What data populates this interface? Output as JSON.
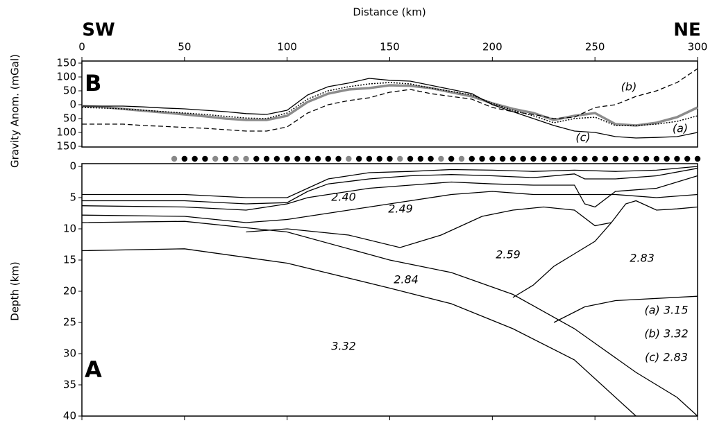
{
  "chart_data": [
    {
      "type": "line",
      "panel": "B",
      "x_label": "Distance (km)",
      "y_label": "Gravity Anom. (mGal)",
      "left_label": "SW",
      "right_label": "NE",
      "xlim": [
        0,
        300
      ],
      "xticks": [
        0,
        50,
        100,
        150,
        200,
        250,
        300
      ],
      "ylim": [
        -150,
        150
      ],
      "yticks": [
        150,
        100,
        50,
        0,
        {
          "value": -50,
          "label": "50"
        },
        {
          "value": -100,
          "label": "100"
        },
        {
          "value": -150,
          "label": "150"
        }
      ],
      "x": [
        0,
        10,
        20,
        30,
        40,
        50,
        60,
        70,
        80,
        90,
        100,
        110,
        120,
        130,
        140,
        150,
        160,
        170,
        180,
        190,
        200,
        210,
        220,
        230,
        240,
        250,
        260,
        270,
        280,
        290,
        300
      ],
      "series": [
        {
          "color": "#8c8c8c",
          "style": "thick",
          "values": [
            -5,
            -8,
            -15,
            -22,
            -28,
            -35,
            -42,
            -50,
            -55,
            -55,
            -40,
            10,
            40,
            55,
            60,
            70,
            68,
            60,
            45,
            30,
            5,
            -15,
            -30,
            -55,
            -40,
            -30,
            -70,
            -75,
            -65,
            -45,
            -10
          ]
        },
        {
          "name": "(a)",
          "color": "#000000",
          "style": "dotted",
          "values": [
            -10,
            -12,
            -15,
            -20,
            -25,
            -30,
            -35,
            -42,
            -48,
            -50,
            -30,
            20,
            50,
            65,
            75,
            80,
            75,
            60,
            48,
            35,
            5,
            -20,
            -40,
            -65,
            -50,
            -45,
            -75,
            -75,
            -70,
            -60,
            -40
          ]
        },
        {
          "name": "(b)",
          "color": "#000000",
          "style": "dashed",
          "values": [
            -70,
            -70,
            -70,
            -75,
            -78,
            -82,
            -85,
            -90,
            -95,
            -95,
            -80,
            -30,
            0,
            15,
            25,
            45,
            55,
            40,
            30,
            20,
            -10,
            -25,
            -35,
            -50,
            -45,
            -10,
            0,
            30,
            50,
            80,
            130
          ]
        },
        {
          "name": "(c)",
          "color": "#000000",
          "style": "solid",
          "values": [
            -5,
            -5,
            -5,
            -8,
            -12,
            -15,
            -20,
            -25,
            -32,
            -35,
            -20,
            35,
            65,
            78,
            95,
            88,
            85,
            70,
            55,
            40,
            0,
            -25,
            -50,
            -75,
            -95,
            -100,
            -115,
            -120,
            -118,
            -115,
            -100
          ]
        }
      ]
    },
    {
      "type": "section",
      "panel": "A",
      "y_label": "Depth (km)",
      "ylim": [
        0,
        40
      ],
      "y_inverted": true,
      "yticks": [
        0,
        5,
        10,
        15,
        20,
        25,
        30,
        35,
        40
      ],
      "stations": {
        "x": [
          45,
          50,
          55,
          60,
          65,
          70,
          75,
          80,
          85,
          90,
          95,
          100,
          105,
          110,
          115,
          120,
          125,
          130,
          135,
          140,
          145,
          150,
          155,
          160,
          165,
          170,
          175,
          180,
          185,
          190,
          195,
          200,
          205,
          210,
          215,
          220,
          225,
          230,
          235,
          240,
          245,
          250,
          255,
          260,
          265,
          270,
          275,
          280,
          285,
          290,
          295,
          300
        ],
        "colors": [
          "#888888",
          "#000000",
          "#000000",
          "#000000",
          "#888888",
          "#000000",
          "#888888",
          "#888888",
          "#000000",
          "#000000",
          "#000000",
          "#000000",
          "#000000",
          "#000000",
          "#000000",
          "#000000",
          "#000000",
          "#888888",
          "#000000",
          "#000000",
          "#000000",
          "#000000",
          "#888888",
          "#000000",
          "#000000",
          "#000000",
          "#888888",
          "#000000",
          "#888888",
          "#000000",
          "#000000",
          "#000000",
          "#000000",
          "#000000",
          "#000000",
          "#000000",
          "#000000",
          "#000000",
          "#000000",
          "#000000",
          "#000000",
          "#000000",
          "#000000",
          "#000000",
          "#000000",
          "#000000",
          "#000000",
          "#000000",
          "#000000",
          "#000000",
          "#000000",
          "#000000"
        ]
      },
      "boundaries": [
        {
          "x": [
            0,
            50,
            80,
            100,
            110,
            120,
            140,
            160,
            180,
            200,
            220,
            240,
            260,
            280,
            300
          ],
          "values": [
            4.5,
            4.5,
            5,
            5,
            3.5,
            2,
            1,
            0.8,
            0.5,
            0.6,
            0.8,
            0.6,
            0.8,
            0.6,
            0
          ]
        },
        {
          "x": [
            0,
            50,
            80,
            100,
            110,
            120,
            140,
            160,
            180,
            200,
            220,
            240,
            245,
            260,
            280,
            300
          ],
          "values": [
            5.5,
            5.5,
            6,
            5.8,
            4,
            2.8,
            2,
            1.5,
            1.3,
            1.5,
            1.8,
            1.2,
            2,
            2,
            1.5,
            0.3
          ]
        },
        {
          "x": [
            0,
            50,
            80,
            100,
            110,
            120,
            140,
            160,
            180,
            200,
            220,
            240,
            245,
            250,
            260,
            280,
            300
          ],
          "values": [
            6.3,
            6.5,
            7,
            6,
            5,
            4.5,
            3.5,
            3,
            2.5,
            2.8,
            3,
            3,
            6,
            6.5,
            4,
            3.5,
            1.5
          ]
        },
        {
          "x": [
            0,
            50,
            80,
            100,
            120,
            140,
            160,
            180,
            200,
            220,
            240,
            260,
            280,
            300
          ],
          "values": [
            7.8,
            8,
            9,
            8.5,
            7.5,
            6.5,
            5.5,
            4.5,
            4,
            4.5,
            4.5,
            4.5,
            5,
            4.5
          ]
        },
        {
          "x": [
            80,
            100,
            130,
            155,
            175,
            195,
            210,
            225,
            240,
            250,
            258
          ],
          "values": [
            10.5,
            10,
            11,
            13,
            11,
            8,
            7,
            6.5,
            7,
            9.5,
            9
          ]
        },
        {
          "x": [
            210,
            220,
            230,
            240,
            250,
            258,
            265,
            270,
            280,
            290,
            300
          ],
          "values": [
            21,
            19,
            16,
            14,
            12,
            9,
            6,
            5.5,
            7,
            6.8,
            6.5
          ]
        },
        {
          "x": [
            230,
            245,
            260,
            300
          ],
          "values": [
            25,
            22.5,
            21.5,
            20.8
          ]
        },
        {
          "x": [
            0,
            50,
            100,
            150,
            180,
            210,
            240,
            270,
            290,
            300
          ],
          "values": [
            9,
            8.8,
            10.5,
            15,
            17,
            20.5,
            26,
            33,
            37,
            40
          ]
        },
        {
          "x": [
            0,
            50,
            100,
            150,
            180,
            210,
            240,
            270
          ],
          "values": [
            13.5,
            13.2,
            15.5,
            19.5,
            22,
            26,
            31,
            40
          ]
        }
      ],
      "annotations": [
        {
          "text": "2.40"
        },
        {
          "text": "2.49"
        },
        {
          "text": "2.59"
        },
        {
          "text": "2.83"
        },
        {
          "text": "2.84"
        },
        {
          "text": "3.32"
        },
        {
          "text": "(a) 3.15"
        },
        {
          "text": "(b) 3.32"
        },
        {
          "text": "(c) 2.83"
        }
      ]
    }
  ]
}
